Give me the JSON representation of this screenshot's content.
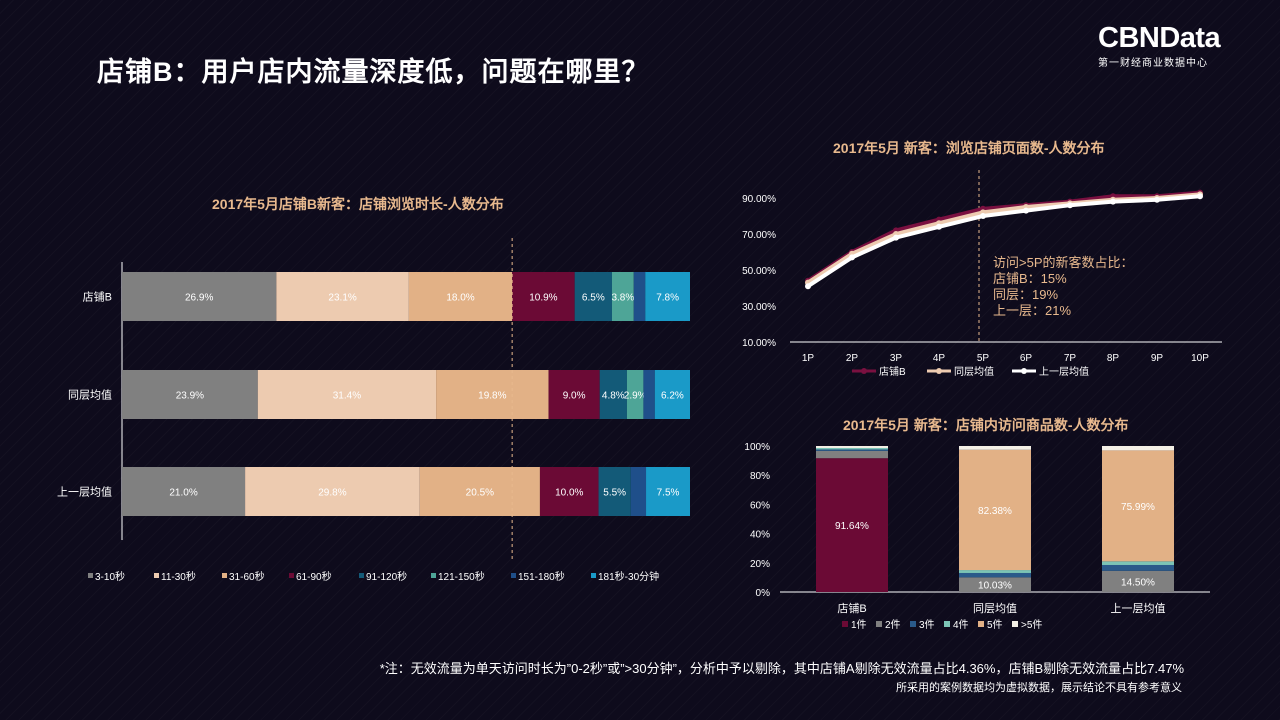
{
  "title": "店铺B：用户店内流量深度低，问题在哪里？",
  "logo": {
    "name": "CBNData",
    "subtitle": "第一财经商业数据中心"
  },
  "colors": {
    "bg": "#0e0b1c",
    "accent": "#e8b98e"
  },
  "chart_data": [
    {
      "type": "bar",
      "orientation": "horizontal-stacked-100",
      "title": "2017年5月店铺B新客：店铺浏览时长-人数分布",
      "categories": [
        "店铺B",
        "同层均值",
        "上一层均值"
      ],
      "series": [
        {
          "name": "3-10秒",
          "color": "#808080",
          "values": [
            26.9,
            23.9,
            21.0
          ]
        },
        {
          "name": "11-30秒",
          "color": "#edcbb0",
          "values": [
            23.1,
            31.4,
            29.8
          ]
        },
        {
          "name": "31-60秒",
          "color": "#e2b186",
          "values": [
            18.0,
            19.8,
            20.5
          ]
        },
        {
          "name": "61-90秒",
          "color": "#6b0a35",
          "values": [
            10.9,
            9.0,
            10.0
          ]
        },
        {
          "name": "91-120秒",
          "color": "#135a78",
          "values": [
            6.5,
            4.8,
            5.5
          ]
        },
        {
          "name": "121-150秒",
          "color": "#4ea597",
          "values": [
            3.8,
            2.9,
            0
          ]
        },
        {
          "name": "151-180秒",
          "color": "#1f4f8a",
          "values": [
            2.0,
            2.0,
            2.6
          ]
        },
        {
          "name": "181秒-30分钟",
          "color": "#1a9ac8",
          "values": [
            7.8,
            6.2,
            7.5
          ]
        }
      ],
      "labels": [
        [
          "26.9%",
          "23.1%",
          "18.0%",
          "10.9%",
          "6.5%",
          "3.8%",
          "",
          "7.8%"
        ],
        [
          "23.9%",
          "31.4%",
          "19.8%",
          "9.0%",
          "4.8%",
          "2.9%",
          "",
          "6.2%"
        ],
        [
          "21.0%",
          "29.8%",
          "20.5%",
          "10.0%",
          "5.5%",
          "",
          "",
          "7.5%"
        ]
      ],
      "threshold_after_series": 2
    },
    {
      "type": "line",
      "title": "2017年5月 新客：浏览店铺页面数-人数分布",
      "x": [
        "1P",
        "2P",
        "3P",
        "4P",
        "5P",
        "6P",
        "7P",
        "8P",
        "9P",
        "10P"
      ],
      "ylim": [
        10,
        95
      ],
      "yticks": [
        "10.00%",
        "30.00%",
        "50.00%",
        "70.00%",
        "90.00%"
      ],
      "ytick_values": [
        10,
        30,
        50,
        70,
        90
      ],
      "series": [
        {
          "name": "店铺B",
          "color": "#7a1040",
          "values": [
            44,
            60,
            72,
            78,
            84,
            86,
            88,
            91,
            91,
            93
          ]
        },
        {
          "name": "同层均值",
          "color": "#edcbb0",
          "values": [
            43,
            59,
            70,
            76,
            82,
            85,
            87,
            89,
            90,
            92
          ]
        },
        {
          "name": "上一层均值",
          "color": "#ffffff",
          "values": [
            41,
            57,
            68,
            74,
            80,
            83,
            86,
            88,
            89,
            91
          ]
        }
      ],
      "marker_line_at": "5P",
      "annotation": [
        "访问>5P的新客数占比：",
        "店铺B：15%",
        "同层：19%",
        "上一层：21%"
      ]
    },
    {
      "type": "bar",
      "orientation": "vertical-stacked-100",
      "title": "2017年5月 新客：店铺内访问商品数-人数分布",
      "categories": [
        "店铺B",
        "同层均值",
        "上一层均值"
      ],
      "ylim": [
        0,
        100
      ],
      "yticks": [
        "0%",
        "20%",
        "40%",
        "60%",
        "80%",
        "100%"
      ],
      "ytick_values": [
        0,
        20,
        40,
        60,
        80,
        100
      ],
      "series": [
        {
          "name": "1件",
          "color": "#6b0a35",
          "values": [
            91.64,
            0,
            0
          ]
        },
        {
          "name": "2件",
          "color": "#808080",
          "values": [
            5.0,
            10.03,
            14.5
          ]
        },
        {
          "name": "3件",
          "color": "#2a5a8a",
          "values": [
            1.0,
            3.0,
            4.0
          ]
        },
        {
          "name": "4件",
          "color": "#7cc4b6",
          "values": [
            1.0,
            2.0,
            2.5
          ]
        },
        {
          "name": "5件",
          "color": "#e2b186",
          "values": [
            0,
            82.38,
            75.99
          ]
        },
        {
          "name": ">5件",
          "color": "#f4f0e6",
          "values": [
            1.36,
            2.59,
            3.01
          ]
        }
      ],
      "labels": [
        {
          "series": "1件",
          "text": [
            "91.64%",
            "",
            ""
          ]
        },
        {
          "series": "2件",
          "text": [
            "",
            "10.03%",
            "14.50%"
          ]
        },
        {
          "series": "5件",
          "text": [
            "",
            "82.38%",
            "75.99%"
          ]
        }
      ]
    }
  ],
  "annotation_text": {
    "line1": "访问>5P的新客数占比：",
    "line2": "店铺B：15%",
    "line3": "同层：19%",
    "line4": "上一层：21%"
  },
  "footnote": "*注：无效流量为单天访问时长为”0-2秒”或”>30分钟”，分析中予以剔除，其中店铺A剔除无效流量占比4.36%，店铺B剔除无效流量占比7.47%",
  "disclaimer": "所采用的案例数据均为虚拟数据，展示结论不具有参考意义"
}
